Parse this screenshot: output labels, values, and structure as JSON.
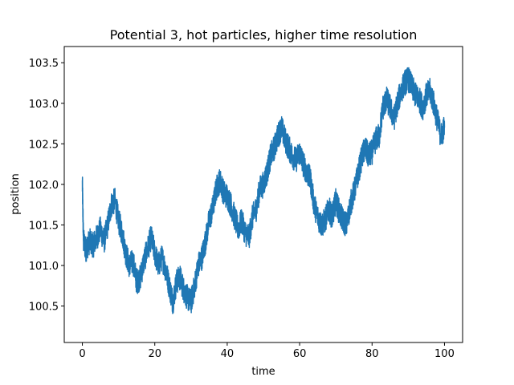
{
  "chart_data": {
    "type": "line",
    "title": "Potential 3, hot particles, higher time resolution",
    "xlabel": "time",
    "ylabel": "position",
    "xlim": [
      -5,
      105
    ],
    "ylim": [
      100.05,
      103.7
    ],
    "xticks": [
      0,
      20,
      40,
      60,
      80,
      100
    ],
    "xtick_labels": [
      "0",
      "20",
      "40",
      "60",
      "80",
      "100"
    ],
    "yticks": [
      100.5,
      101.0,
      101.5,
      102.0,
      102.5,
      103.0,
      103.5
    ],
    "ytick_labels": [
      "100.5",
      "101.0",
      "101.5",
      "102.0",
      "102.5",
      "103.0",
      "103.5"
    ],
    "grid": false,
    "color": "#1f77b4",
    "series": [
      {
        "x": [
          0,
          0.3,
          1,
          2,
          3,
          4,
          5,
          6,
          7,
          8,
          9,
          10,
          11,
          12,
          13,
          14,
          15,
          16,
          17,
          18,
          19,
          20,
          21,
          22,
          23,
          24,
          25,
          26,
          27,
          28,
          29,
          30,
          31,
          32,
          33,
          34,
          35,
          36,
          37,
          38,
          39,
          40,
          41,
          42,
          43,
          44,
          45,
          46,
          47,
          48,
          49,
          50,
          51,
          52,
          53,
          54,
          55,
          56,
          57,
          58,
          59,
          60,
          61,
          62,
          63,
          64,
          65,
          66,
          67,
          68,
          69,
          70,
          71,
          72,
          73,
          74,
          75,
          76,
          77,
          78,
          79,
          80,
          81,
          82,
          83,
          84,
          85,
          86,
          87,
          88,
          89,
          90,
          91,
          92,
          93,
          94,
          95,
          96,
          97,
          98,
          99,
          100
        ],
        "y": [
          102.0,
          101.3,
          101.2,
          101.3,
          101.25,
          101.35,
          101.45,
          101.3,
          101.5,
          101.75,
          101.8,
          101.55,
          101.4,
          101.15,
          101.0,
          101.05,
          100.8,
          100.85,
          101.05,
          101.2,
          101.35,
          101.15,
          101.0,
          101.1,
          100.95,
          100.75,
          100.55,
          100.8,
          100.85,
          100.7,
          100.6,
          100.55,
          100.75,
          101.0,
          101.1,
          101.3,
          101.55,
          101.7,
          101.95,
          102.05,
          101.9,
          101.85,
          101.75,
          101.6,
          101.45,
          101.55,
          101.4,
          101.35,
          101.6,
          101.7,
          101.95,
          102.0,
          102.15,
          102.35,
          102.45,
          102.6,
          102.7,
          102.55,
          102.45,
          102.35,
          102.3,
          102.4,
          102.25,
          102.15,
          102.05,
          101.75,
          101.6,
          101.5,
          101.55,
          101.7,
          101.6,
          101.8,
          101.65,
          101.55,
          101.5,
          101.75,
          101.9,
          102.1,
          102.3,
          102.45,
          102.35,
          102.4,
          102.55,
          102.6,
          102.95,
          103.05,
          102.95,
          102.8,
          103.0,
          103.15,
          103.25,
          103.3,
          103.2,
          103.1,
          103.05,
          102.95,
          103.1,
          103.15,
          103.0,
          102.8,
          102.6,
          102.7
        ]
      }
    ]
  }
}
